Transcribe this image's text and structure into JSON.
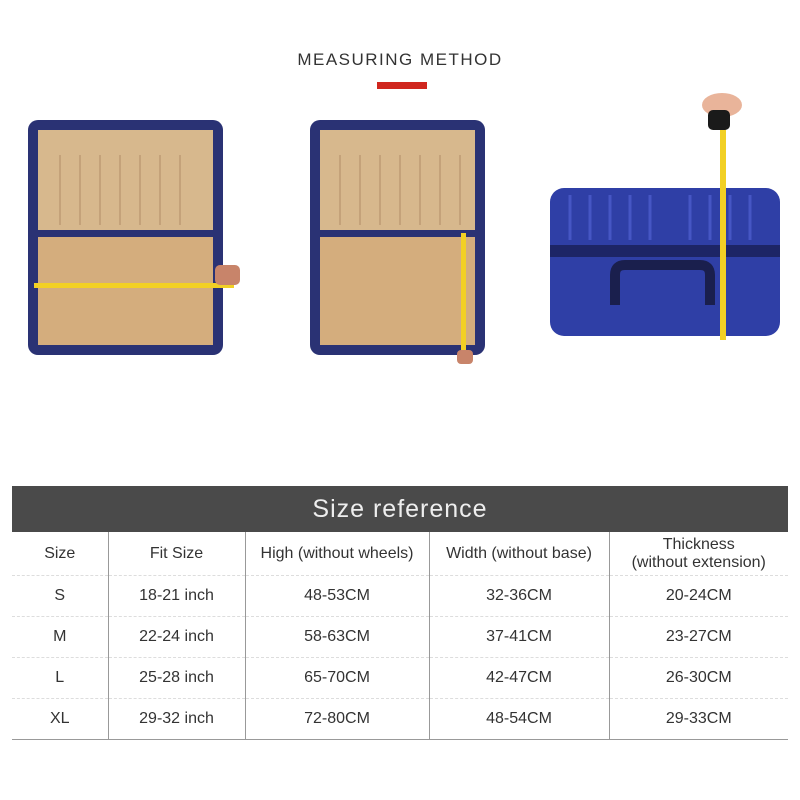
{
  "header": {
    "title": "MEASURING METHOD",
    "accent_color": "#d0261e"
  },
  "images": [
    {
      "name": "open-suitcase-width-measure"
    },
    {
      "name": "open-suitcase-height-measure"
    },
    {
      "name": "closed-suitcase-thickness-measure"
    }
  ],
  "size_table": {
    "title": "Size reference",
    "columns": [
      "Size",
      "Fit Size",
      "High (without wheels)",
      "Width (without base)",
      "Thickness\n(without extension)"
    ],
    "rows": [
      [
        "S",
        "18-21 inch",
        "48-53CM",
        "32-36CM",
        "20-24CM"
      ],
      [
        "M",
        "22-24 inch",
        "58-63CM",
        "37-41CM",
        "23-27CM"
      ],
      [
        "L",
        "25-28 inch",
        "65-70CM",
        "42-47CM",
        "26-30CM"
      ],
      [
        "XL",
        "29-32 inch",
        "72-80CM",
        "48-54CM",
        "29-33CM"
      ]
    ]
  }
}
